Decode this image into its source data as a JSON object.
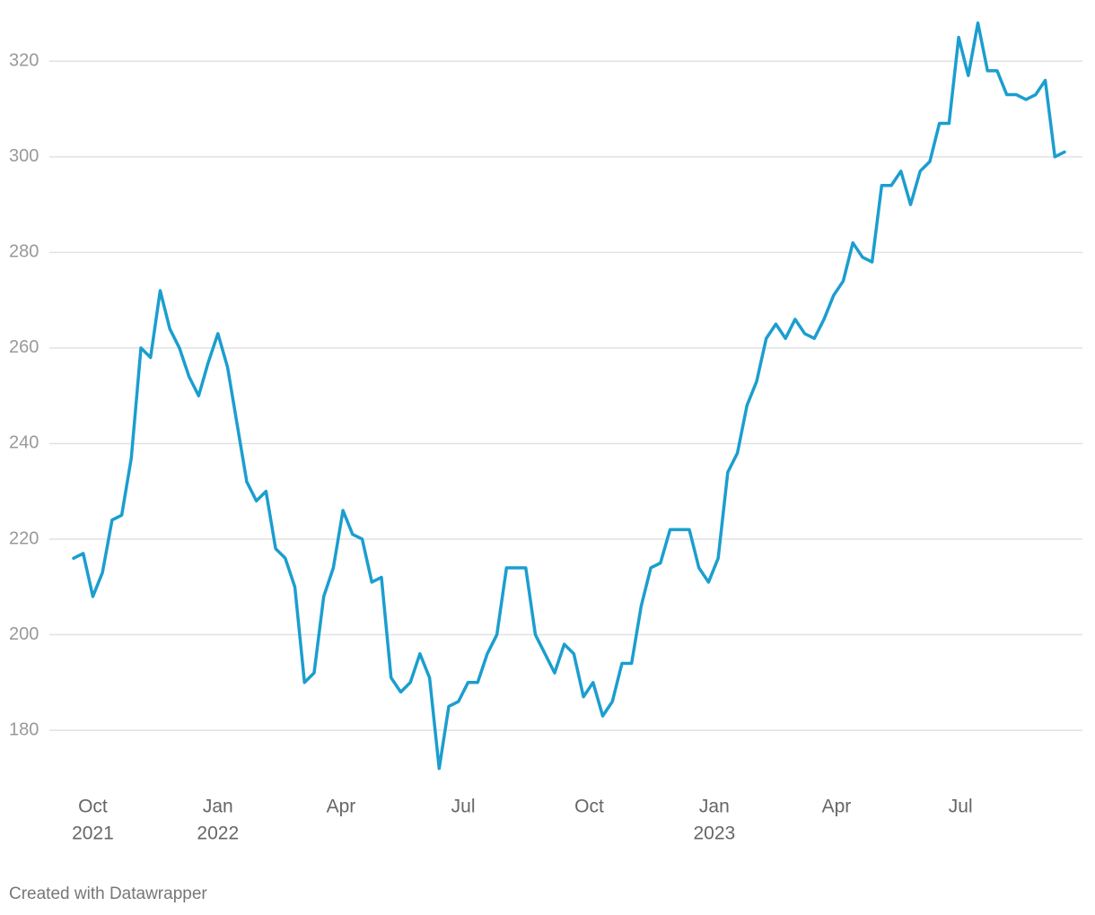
{
  "chart_data": {
    "type": "line",
    "series": [
      {
        "color": "#1b9ecf",
        "values": [
          216,
          217,
          208,
          213,
          224,
          225,
          237,
          260,
          258,
          272,
          264,
          260,
          254,
          250,
          257,
          263,
          256,
          244,
          232,
          228,
          230,
          218,
          216,
          210,
          190,
          192,
          208,
          214,
          226,
          221,
          220,
          211,
          212,
          191,
          188,
          190,
          196,
          191,
          172,
          185,
          186,
          190,
          190,
          196,
          200,
          214,
          214,
          214,
          200,
          196,
          192,
          198,
          196,
          187,
          190,
          183,
          186,
          194,
          194,
          206,
          214,
          215,
          222,
          222,
          222,
          214,
          211,
          216,
          234,
          238,
          248,
          253,
          262,
          265,
          262,
          266,
          263,
          262,
          266,
          271,
          274,
          282,
          279,
          278,
          294,
          294,
          297,
          290,
          297,
          299,
          307,
          307,
          325,
          317,
          328,
          318,
          318,
          313,
          313,
          312,
          313,
          316,
          300,
          301
        ]
      }
    ],
    "xlim": [
      0,
      103
    ],
    "xticks": [
      {
        "value": 2,
        "label": "Oct",
        "year": "2021"
      },
      {
        "value": 15,
        "label": "Jan",
        "year": "2022"
      },
      {
        "value": 27.8,
        "label": "Apr"
      },
      {
        "value": 40.5,
        "label": "Jul"
      },
      {
        "value": 53.6,
        "label": "Oct"
      },
      {
        "value": 66.6,
        "label": "Jan",
        "year": "2023"
      },
      {
        "value": 79.3,
        "label": "Apr"
      },
      {
        "value": 92.2,
        "label": "Jul"
      }
    ],
    "ylim": [
      168,
      330
    ],
    "yticks": [
      180,
      200,
      220,
      240,
      260,
      280,
      300,
      320
    ],
    "grid": true,
    "footer": "Created with Datawrapper"
  }
}
